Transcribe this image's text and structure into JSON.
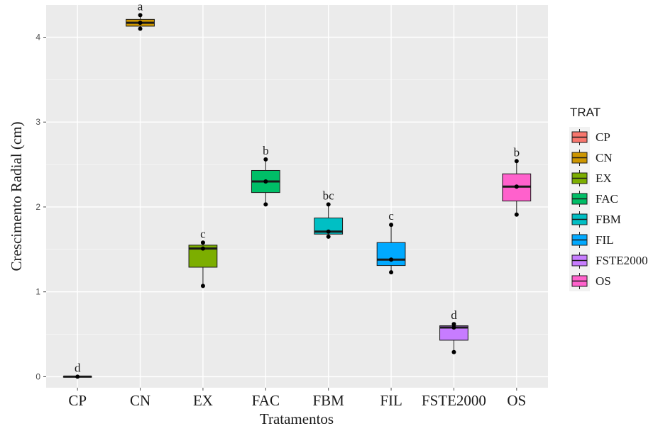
{
  "chart_data": {
    "type": "boxplot",
    "xlabel": "Tratamentos",
    "ylabel": "Crescimento Radial (cm)",
    "ylim": [
      -0.13,
      4.38
    ],
    "yticks": [
      0,
      1,
      2,
      3,
      4
    ],
    "ytick_labels": [
      "0",
      "1",
      "2",
      "3",
      "4"
    ],
    "grid": true,
    "legend_title": "TRAT",
    "legend_position": "right",
    "categories": [
      "CP",
      "CN",
      "EX",
      "FAC",
      "FBM",
      "FIL",
      "FSTE2000",
      "OS"
    ],
    "colors": [
      "#F8766D",
      "#CD9600",
      "#7CAE00",
      "#00BE67",
      "#00BFC4",
      "#00A9FF",
      "#C77CFF",
      "#FF61CC"
    ],
    "boxes": [
      {
        "name": "CP",
        "q1": 0.0,
        "median": 0.0,
        "q3": 0.0,
        "whisker_low": 0.0,
        "whisker_high": 0.0,
        "points": [
          0.0
        ],
        "group": "d"
      },
      {
        "name": "CN",
        "q1": 4.13,
        "median": 4.17,
        "q3": 4.21,
        "whisker_low": 4.1,
        "whisker_high": 4.26,
        "points": [
          4.1,
          4.17,
          4.26
        ],
        "group": "a"
      },
      {
        "name": "EX",
        "q1": 1.29,
        "median": 1.51,
        "q3": 1.55,
        "whisker_low": 1.07,
        "whisker_high": 1.58,
        "points": [
          1.07,
          1.51,
          1.58
        ],
        "group": "c"
      },
      {
        "name": "FAC",
        "q1": 2.17,
        "median": 2.3,
        "q3": 2.43,
        "whisker_low": 2.03,
        "whisker_high": 2.56,
        "points": [
          2.03,
          2.3,
          2.56
        ],
        "group": "b"
      },
      {
        "name": "FBM",
        "q1": 1.68,
        "median": 1.71,
        "q3": 1.87,
        "whisker_low": 1.65,
        "whisker_high": 2.03,
        "points": [
          1.65,
          1.71,
          2.03
        ],
        "group": "bc"
      },
      {
        "name": "FIL",
        "q1": 1.31,
        "median": 1.38,
        "q3": 1.58,
        "whisker_low": 1.23,
        "whisker_high": 1.79,
        "points": [
          1.23,
          1.38,
          1.79
        ],
        "group": "c"
      },
      {
        "name": "FSTE2000",
        "q1": 0.43,
        "median": 0.58,
        "q3": 0.6,
        "whisker_low": 0.29,
        "whisker_high": 0.62,
        "points": [
          0.29,
          0.58,
          0.62
        ],
        "group": "d"
      },
      {
        "name": "OS",
        "q1": 2.07,
        "median": 2.24,
        "q3": 2.39,
        "whisker_low": 1.91,
        "whisker_high": 2.54,
        "points": [
          1.91,
          2.24,
          2.54
        ],
        "group": "b"
      }
    ]
  }
}
